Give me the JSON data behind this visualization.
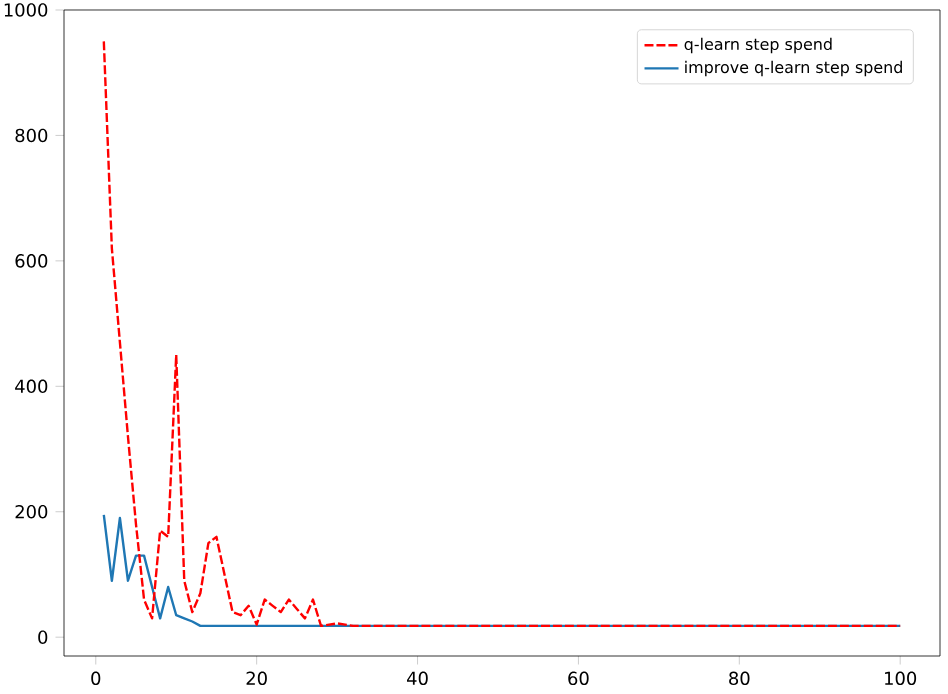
{
  "chart_data": {
    "type": "line",
    "x": [
      1,
      2,
      3,
      4,
      5,
      6,
      7,
      8,
      9,
      10,
      11,
      12,
      13,
      14,
      15,
      16,
      17,
      18,
      19,
      20,
      21,
      22,
      23,
      24,
      25,
      26,
      27,
      28,
      29,
      30,
      31,
      32,
      33,
      34,
      35,
      36,
      37,
      38,
      39,
      40,
      41,
      42,
      43,
      44,
      45,
      46,
      47,
      48,
      49,
      50,
      51,
      52,
      53,
      54,
      55,
      56,
      57,
      58,
      59,
      60,
      61,
      62,
      63,
      64,
      65,
      66,
      67,
      68,
      69,
      70,
      71,
      72,
      73,
      74,
      75,
      76,
      77,
      78,
      79,
      80,
      81,
      82,
      83,
      84,
      85,
      86,
      87,
      88,
      89,
      90,
      91,
      92,
      93,
      94,
      95,
      96,
      97,
      98,
      99,
      100
    ],
    "series": [
      {
        "name": "q-learn step spend",
        "color": "#ff0000",
        "line_style": "dashed",
        "values": [
          950,
          620,
          470,
          320,
          180,
          60,
          30,
          170,
          160,
          450,
          90,
          40,
          70,
          150,
          160,
          100,
          40,
          35,
          50,
          20,
          60,
          50,
          40,
          60,
          45,
          30,
          60,
          18,
          20,
          22,
          20,
          18,
          18,
          18,
          18,
          18,
          18,
          18,
          18,
          18,
          18,
          18,
          18,
          18,
          18,
          18,
          18,
          18,
          18,
          18,
          18,
          18,
          18,
          18,
          18,
          18,
          18,
          18,
          18,
          18,
          18,
          18,
          18,
          18,
          18,
          18,
          18,
          18,
          18,
          18,
          18,
          18,
          18,
          18,
          18,
          18,
          18,
          18,
          18,
          18,
          18,
          18,
          18,
          18,
          18,
          18,
          18,
          18,
          18,
          18,
          18,
          18,
          18,
          18,
          18,
          18,
          18,
          18,
          18,
          18
        ]
      },
      {
        "name": "improve q-learn step spend",
        "color": "#1f77b4",
        "line_style": "solid",
        "values": [
          195,
          90,
          190,
          90,
          130,
          130,
          80,
          30,
          80,
          35,
          30,
          25,
          18,
          18,
          18,
          18,
          18,
          18,
          18,
          18,
          18,
          18,
          18,
          18,
          18,
          18,
          18,
          18,
          18,
          18,
          18,
          18,
          18,
          18,
          18,
          18,
          18,
          18,
          18,
          18,
          18,
          18,
          18,
          18,
          18,
          18,
          18,
          18,
          18,
          18,
          18,
          18,
          18,
          18,
          18,
          18,
          18,
          18,
          18,
          18,
          18,
          18,
          18,
          18,
          18,
          18,
          18,
          18,
          18,
          18,
          18,
          18,
          18,
          18,
          18,
          18,
          18,
          18,
          18,
          18,
          18,
          18,
          18,
          18,
          18,
          18,
          18,
          18,
          18,
          18,
          18,
          18,
          18,
          18,
          18,
          18,
          18,
          18,
          18,
          18
        ]
      }
    ],
    "xlim": [
      -3.95,
      104.95
    ],
    "ylim": [
      -30,
      1000
    ],
    "xticks": [
      0,
      20,
      40,
      60,
      80,
      100
    ],
    "yticks": [
      0,
      200,
      400,
      600,
      800,
      1000
    ],
    "legend": "top right"
  }
}
